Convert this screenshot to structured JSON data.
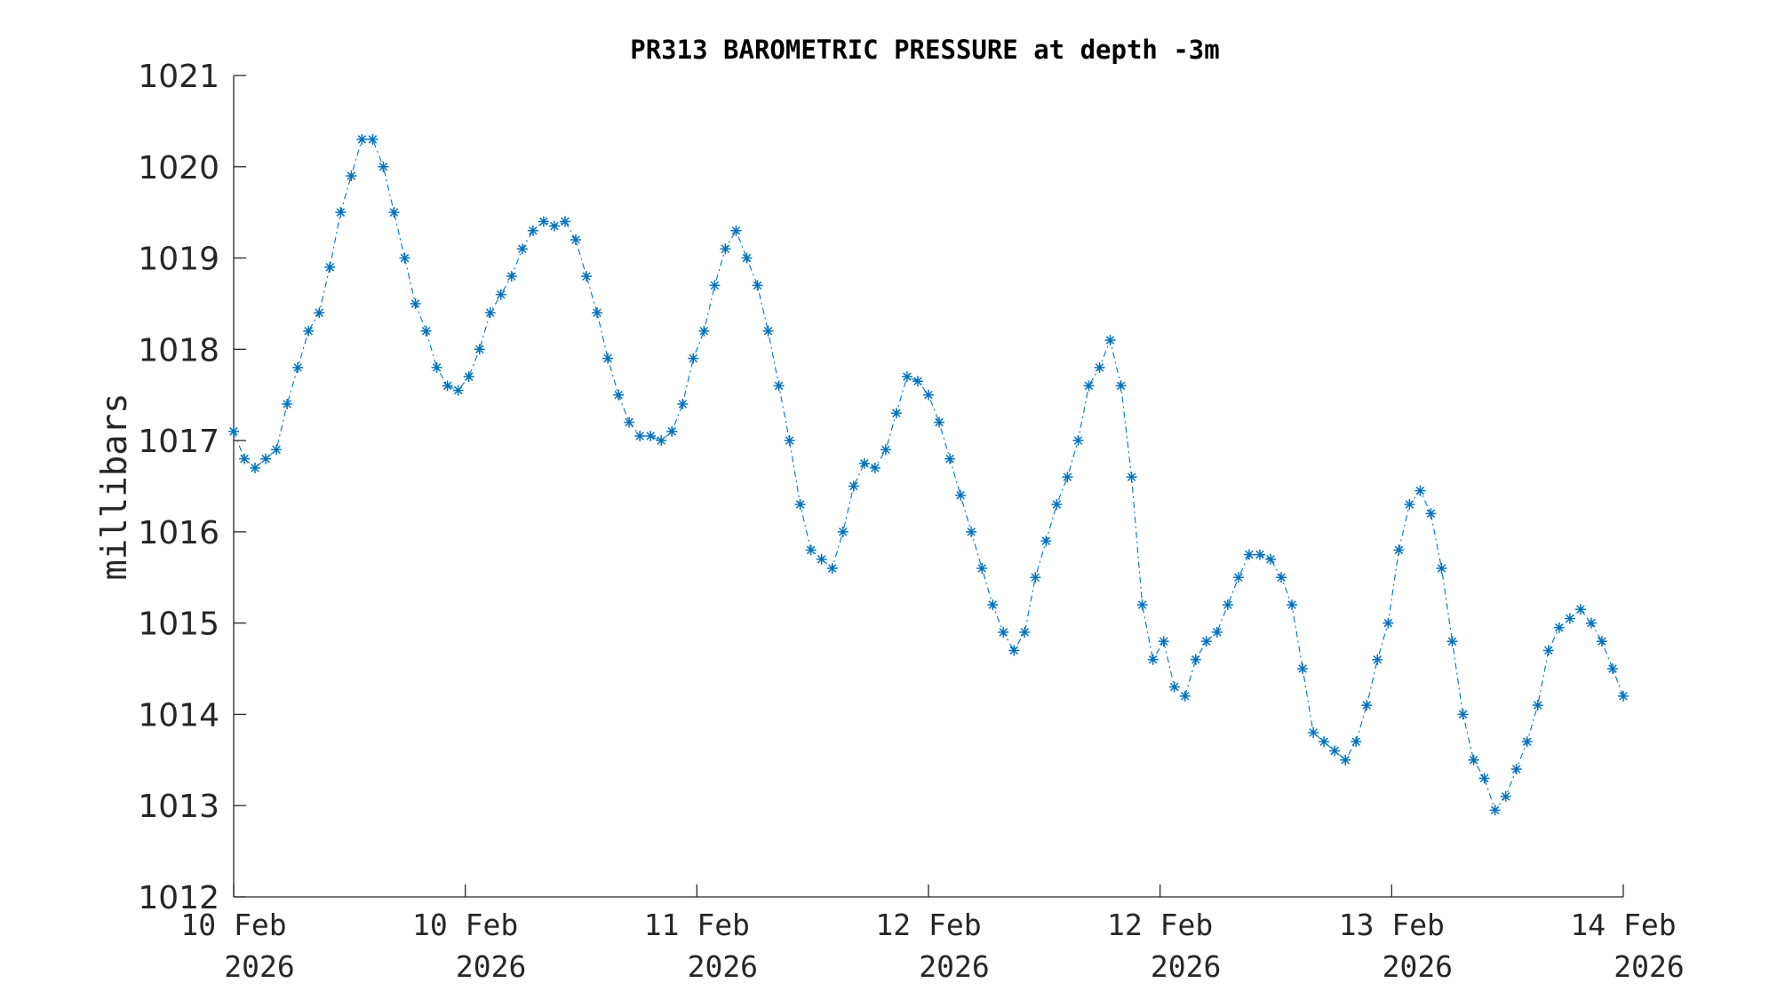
{
  "chart_data": {
    "type": "line",
    "title": "PR313 BAROMETRIC PRESSURE at depth -3m",
    "xlabel": "",
    "ylabel": "millibars",
    "xlim": [
      "10 Feb 2026 00:00",
      "14 Feb 2026 00:00"
    ],
    "ylim": [
      1012,
      1021
    ],
    "grid": false,
    "y_ticks": [
      "1012",
      "1013",
      "1014",
      "1015",
      "1016",
      "1017",
      "1018",
      "1019",
      "1020",
      "1021"
    ],
    "x_ticks": [
      {
        "day": "10 Feb",
        "year": "2026"
      },
      {
        "day": "10 Feb",
        "year": "2026"
      },
      {
        "day": "11 Feb",
        "year": "2026"
      },
      {
        "day": "12 Feb",
        "year": "2026"
      },
      {
        "day": "12 Feb",
        "year": "2026"
      },
      {
        "day": "13 Feb",
        "year": "2026"
      },
      {
        "day": "14 Feb",
        "year": "2026"
      }
    ],
    "x_unit": "hours since 10 Feb 2026 00:00",
    "series": [
      {
        "color": "#0072BD",
        "marker": "asterisk",
        "line": "dash-dot",
        "points": [
          [
            0.0,
            1017.1
          ],
          [
            1.0,
            1016.8
          ],
          [
            2.0,
            1016.7
          ],
          [
            3.0,
            1016.8
          ],
          [
            4.0,
            1016.9
          ],
          [
            5.0,
            1017.4
          ],
          [
            6.0,
            1017.8
          ],
          [
            7.0,
            1018.2
          ],
          [
            8.0,
            1018.4
          ],
          [
            9.0,
            1018.9
          ],
          [
            10.0,
            1019.5
          ],
          [
            11.0,
            1019.9
          ],
          [
            12.0,
            1020.3
          ],
          [
            13.0,
            1020.3
          ],
          [
            14.0,
            1020.0
          ],
          [
            15.0,
            1019.5
          ],
          [
            16.0,
            1019.0
          ],
          [
            17.0,
            1018.5
          ],
          [
            18.0,
            1018.2
          ],
          [
            19.0,
            1017.8
          ],
          [
            20.0,
            1017.6
          ],
          [
            21.0,
            1017.55
          ],
          [
            22.0,
            1017.7
          ],
          [
            23.0,
            1018.0
          ],
          [
            24.0,
            1018.4
          ],
          [
            25.0,
            1018.6
          ],
          [
            26.0,
            1018.8
          ],
          [
            27.0,
            1019.1
          ],
          [
            28.0,
            1019.3
          ],
          [
            29.0,
            1019.4
          ],
          [
            30.0,
            1019.35
          ],
          [
            31.0,
            1019.4
          ],
          [
            32.0,
            1019.2
          ],
          [
            33.0,
            1018.8
          ],
          [
            34.0,
            1018.4
          ],
          [
            35.0,
            1017.9
          ],
          [
            36.0,
            1017.5
          ],
          [
            37.0,
            1017.2
          ],
          [
            38.0,
            1017.05
          ],
          [
            39.0,
            1017.05
          ],
          [
            40.0,
            1017.0
          ],
          [
            41.0,
            1017.1
          ],
          [
            42.0,
            1017.4
          ],
          [
            43.0,
            1017.9
          ],
          [
            44.0,
            1018.2
          ],
          [
            45.0,
            1018.7
          ],
          [
            46.0,
            1019.1
          ],
          [
            47.0,
            1019.3
          ],
          [
            48.0,
            1019.0
          ],
          [
            49.0,
            1018.7
          ],
          [
            50.0,
            1018.2
          ],
          [
            51.0,
            1017.6
          ],
          [
            52.0,
            1017.0
          ],
          [
            53.0,
            1016.3
          ],
          [
            54.0,
            1015.8
          ],
          [
            55.0,
            1015.7
          ],
          [
            56.0,
            1015.6
          ],
          [
            57.0,
            1016.0
          ],
          [
            58.0,
            1016.5
          ],
          [
            59.0,
            1016.75
          ],
          [
            60.0,
            1016.7
          ],
          [
            61.0,
            1016.9
          ],
          [
            62.0,
            1017.3
          ],
          [
            63.0,
            1017.7
          ],
          [
            64.0,
            1017.65
          ],
          [
            65.0,
            1017.5
          ],
          [
            66.0,
            1017.2
          ],
          [
            67.0,
            1016.8
          ],
          [
            68.0,
            1016.4
          ],
          [
            69.0,
            1016.0
          ],
          [
            70.0,
            1015.6
          ],
          [
            71.0,
            1015.2
          ],
          [
            72.0,
            1014.9
          ],
          [
            73.0,
            1014.7
          ],
          [
            74.0,
            1014.9
          ],
          [
            75.0,
            1015.5
          ],
          [
            76.0,
            1015.9
          ],
          [
            77.0,
            1016.3
          ],
          [
            78.0,
            1016.6
          ],
          [
            79.0,
            1017.0
          ],
          [
            80.0,
            1017.6
          ],
          [
            81.0,
            1017.8
          ],
          [
            82.0,
            1018.1
          ],
          [
            83.0,
            1017.6
          ],
          [
            84.0,
            1016.6
          ],
          [
            85.0,
            1015.2
          ],
          [
            86.0,
            1014.6
          ],
          [
            87.0,
            1014.8
          ],
          [
            88.0,
            1014.3
          ],
          [
            89.0,
            1014.2
          ],
          [
            90.0,
            1014.6
          ],
          [
            91.0,
            1014.8
          ],
          [
            92.0,
            1014.9
          ],
          [
            93.0,
            1015.2
          ],
          [
            94.0,
            1015.5
          ],
          [
            95.0,
            1015.75
          ],
          [
            96.0,
            1015.75
          ],
          [
            97.0,
            1015.7
          ],
          [
            98.0,
            1015.5
          ],
          [
            99.0,
            1015.2
          ],
          [
            100.0,
            1014.5
          ],
          [
            101.0,
            1013.8
          ],
          [
            102.0,
            1013.7
          ],
          [
            103.0,
            1013.6
          ],
          [
            104.0,
            1013.5
          ],
          [
            105.0,
            1013.7
          ],
          [
            106.0,
            1014.1
          ],
          [
            107.0,
            1014.6
          ],
          [
            108.0,
            1015.0
          ],
          [
            109.0,
            1015.8
          ],
          [
            110.0,
            1016.3
          ],
          [
            111.0,
            1016.45
          ],
          [
            112.0,
            1016.2
          ],
          [
            113.0,
            1015.6
          ],
          [
            114.0,
            1014.8
          ],
          [
            115.0,
            1014.0
          ],
          [
            116.0,
            1013.5
          ],
          [
            117.0,
            1013.3
          ],
          [
            118.0,
            1012.95
          ],
          [
            119.0,
            1013.1
          ],
          [
            120.0,
            1013.4
          ],
          [
            121.0,
            1013.7
          ],
          [
            122.0,
            1014.1
          ],
          [
            123.0,
            1014.7
          ],
          [
            124.0,
            1014.95
          ],
          [
            125.0,
            1015.05
          ],
          [
            126.0,
            1015.15
          ],
          [
            127.0,
            1015.0
          ],
          [
            128.0,
            1014.8
          ],
          [
            129.0,
            1014.5
          ],
          [
            130.0,
            1014.2
          ]
        ]
      }
    ]
  }
}
